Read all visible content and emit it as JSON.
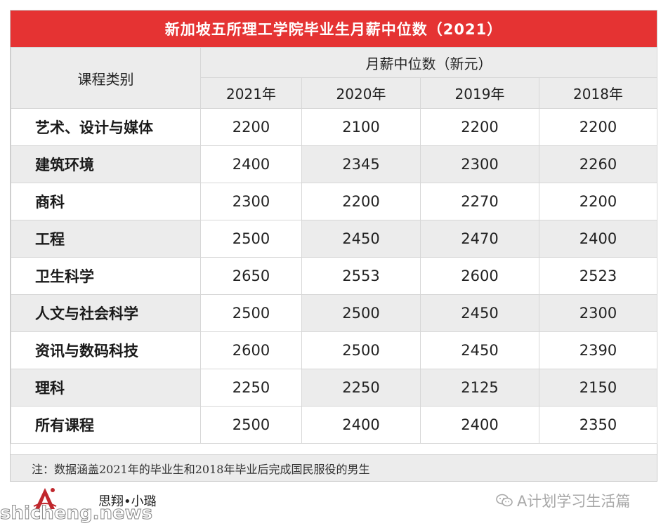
{
  "title": "新加坡五所理工学院毕业生月薪中位数（2021）",
  "table": {
    "header_left": "课程类别",
    "header_group": "月薪中位数（新元）",
    "years": [
      "2021年",
      "2020年",
      "2019年",
      "2018年"
    ],
    "rows": [
      {
        "category": "艺术、设计与媒体",
        "values": [
          "2200",
          "2100",
          "2200",
          "2200"
        ]
      },
      {
        "category": "建筑环境",
        "values": [
          "2400",
          "2345",
          "2300",
          "2260"
        ]
      },
      {
        "category": "商科",
        "values": [
          "2300",
          "2200",
          "2270",
          "2200"
        ]
      },
      {
        "category": "工程",
        "values": [
          "2500",
          "2450",
          "2470",
          "2400"
        ]
      },
      {
        "category": "卫生科学",
        "values": [
          "2650",
          "2553",
          "2600",
          "2523"
        ]
      },
      {
        "category": "人文与社会科学",
        "values": [
          "2500",
          "2500",
          "2450",
          "2300"
        ]
      },
      {
        "category": "资讯与数码科技",
        "values": [
          "2600",
          "2500",
          "2450",
          "2390"
        ]
      },
      {
        "category": "理科",
        "values": [
          "2250",
          "2250",
          "2125",
          "2150"
        ]
      },
      {
        "category": "所有课程",
        "values": [
          "2500",
          "2400",
          "2400",
          "2350"
        ]
      }
    ]
  },
  "note": "注：数据涵盖2021年的毕业生和2018年毕业后完成国民服役的男生",
  "footer": {
    "brand": "思翔•小璐",
    "wechat_account": "A计划学习生活篇",
    "watermark": "shicheng.news"
  },
  "colors": {
    "title_bg": "#e53333",
    "header_bg": "#ececec",
    "accent_logo": "#c0272d"
  }
}
